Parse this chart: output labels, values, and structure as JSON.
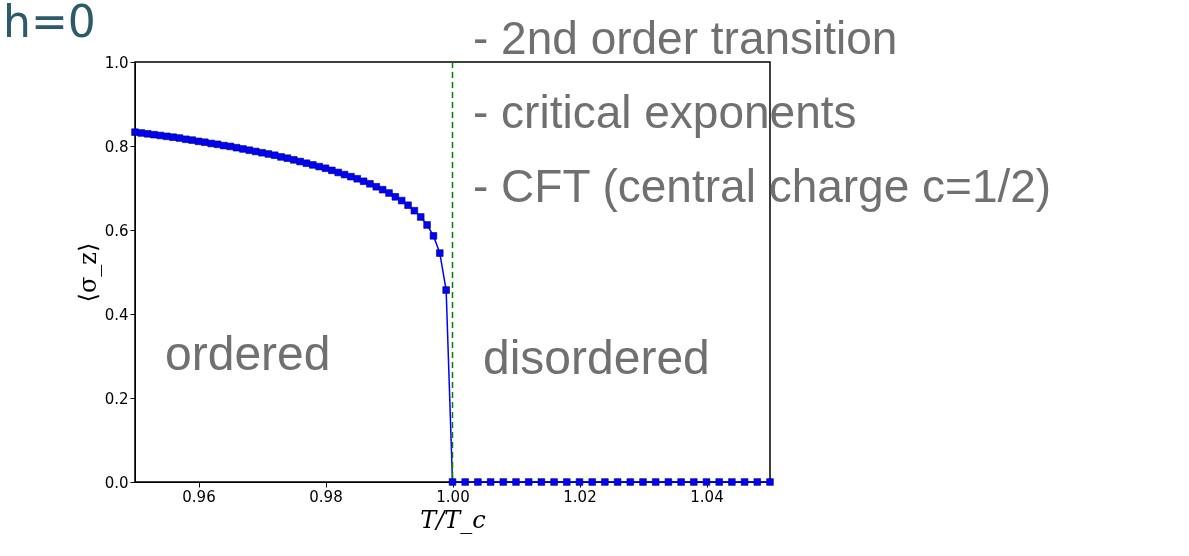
{
  "chart_data": {
    "type": "line",
    "title": "h=0",
    "xlabel": "T/T_c",
    "ylabel": "⟨σ_z⟩",
    "annotations": [
      "- 2nd order transition",
      "- critical exponents",
      "- CFT (central charge c=1/2)",
      "ordered",
      "disordered"
    ],
    "series": [
      {
        "color": "#0000ff",
        "x": [
          0.95,
          0.951,
          0.952,
          0.953,
          0.954,
          0.955,
          0.956,
          0.957,
          0.958,
          0.959,
          0.96,
          0.961,
          0.962,
          0.963,
          0.964,
          0.965,
          0.966,
          0.967,
          0.968,
          0.969,
          0.97,
          0.971,
          0.972,
          0.973,
          0.974,
          0.975,
          0.976,
          0.977,
          0.978,
          0.979,
          0.98,
          0.981,
          0.982,
          0.983,
          0.984,
          0.985,
          0.986,
          0.987,
          0.988,
          0.989,
          0.99,
          0.991,
          0.992,
          0.993,
          0.994,
          0.995,
          0.996,
          0.997,
          0.998,
          0.999,
          1.0,
          1.002,
          1.004,
          1.006,
          1.008,
          1.01,
          1.012,
          1.014,
          1.016,
          1.018,
          1.02,
          1.022,
          1.024,
          1.026,
          1.028,
          1.03,
          1.032,
          1.034,
          1.036,
          1.038,
          1.04,
          1.042,
          1.044,
          1.046,
          1.048,
          1.05
        ],
        "values": [
          0.833,
          0.831,
          0.829,
          0.827,
          0.825,
          0.823,
          0.821,
          0.819,
          0.816,
          0.814,
          0.811,
          0.809,
          0.806,
          0.804,
          0.801,
          0.799,
          0.796,
          0.793,
          0.79,
          0.787,
          0.784,
          0.781,
          0.778,
          0.774,
          0.771,
          0.767,
          0.763,
          0.759,
          0.755,
          0.751,
          0.747,
          0.742,
          0.737,
          0.732,
          0.727,
          0.722,
          0.716,
          0.71,
          0.703,
          0.696,
          0.688,
          0.679,
          0.67,
          0.659,
          0.646,
          0.631,
          0.612,
          0.586,
          0.545,
          0.457,
          0,
          0,
          0,
          0,
          0,
          0,
          0,
          0,
          0,
          0,
          0,
          0,
          0,
          0,
          0,
          0,
          0,
          0,
          0,
          0,
          0,
          0,
          0,
          0,
          0,
          0
        ]
      }
    ],
    "xlim": [
      0.95,
      1.05
    ],
    "xticks": [
      0.96,
      0.98,
      {
        "value": 1.0,
        "label": "1.00"
      },
      1.02,
      1.04
    ],
    "ylim": [
      0,
      1
    ],
    "yticks": [
      {
        "value": 0,
        "label": "0.0"
      },
      0.2,
      0.4,
      0.6,
      0.8,
      {
        "value": 1,
        "label": "1.0"
      }
    ],
    "ref_lines": [
      {
        "axis": "x",
        "value": 1.0,
        "color": "#008000",
        "line_style": "dashed"
      }
    ],
    "marker": "square",
    "grid": false
  }
}
